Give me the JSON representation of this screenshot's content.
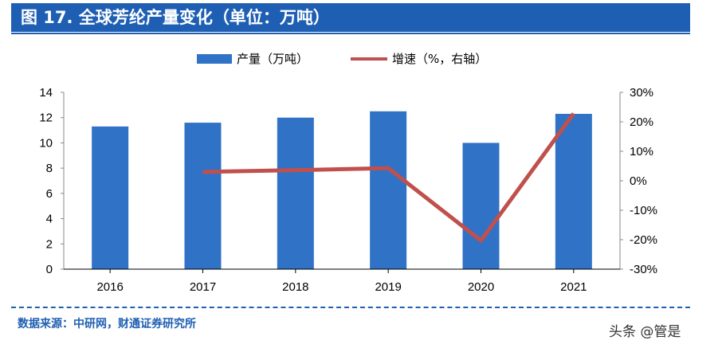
{
  "title": "图 17. 全球芳纶产量变化（单位：万吨）",
  "source": "数据来源：中研网，财通证券研究所",
  "watermark": "头条 @管是",
  "colors": {
    "bar": "#3072c5",
    "line": "#c0504d",
    "title_bg": "#1f5fb3"
  },
  "chart_data": {
    "type": "bar+line",
    "categories": [
      "2016",
      "2017",
      "2018",
      "2019",
      "2020",
      "2021"
    ],
    "series": [
      {
        "name": "产量（万吨）",
        "type": "bar",
        "axis": "left",
        "values": [
          11.3,
          11.6,
          12.0,
          12.5,
          10.0,
          12.3
        ]
      },
      {
        "name": "增速（%，右轴）",
        "type": "line",
        "axis": "right",
        "values": [
          null,
          3.0,
          3.6,
          4.3,
          -20.3,
          22.8
        ]
      }
    ],
    "left_axis": {
      "ylim": [
        0,
        14
      ],
      "ticks": [
        "0",
        "2",
        "4",
        "6",
        "8",
        "10",
        "12",
        "14"
      ]
    },
    "right_axis": {
      "ylim": [
        -30,
        30
      ],
      "ticks": [
        "-30%",
        "-20%",
        "-10%",
        "0%",
        "10%",
        "20%",
        "30%"
      ]
    },
    "legend": "top",
    "grid": false
  }
}
